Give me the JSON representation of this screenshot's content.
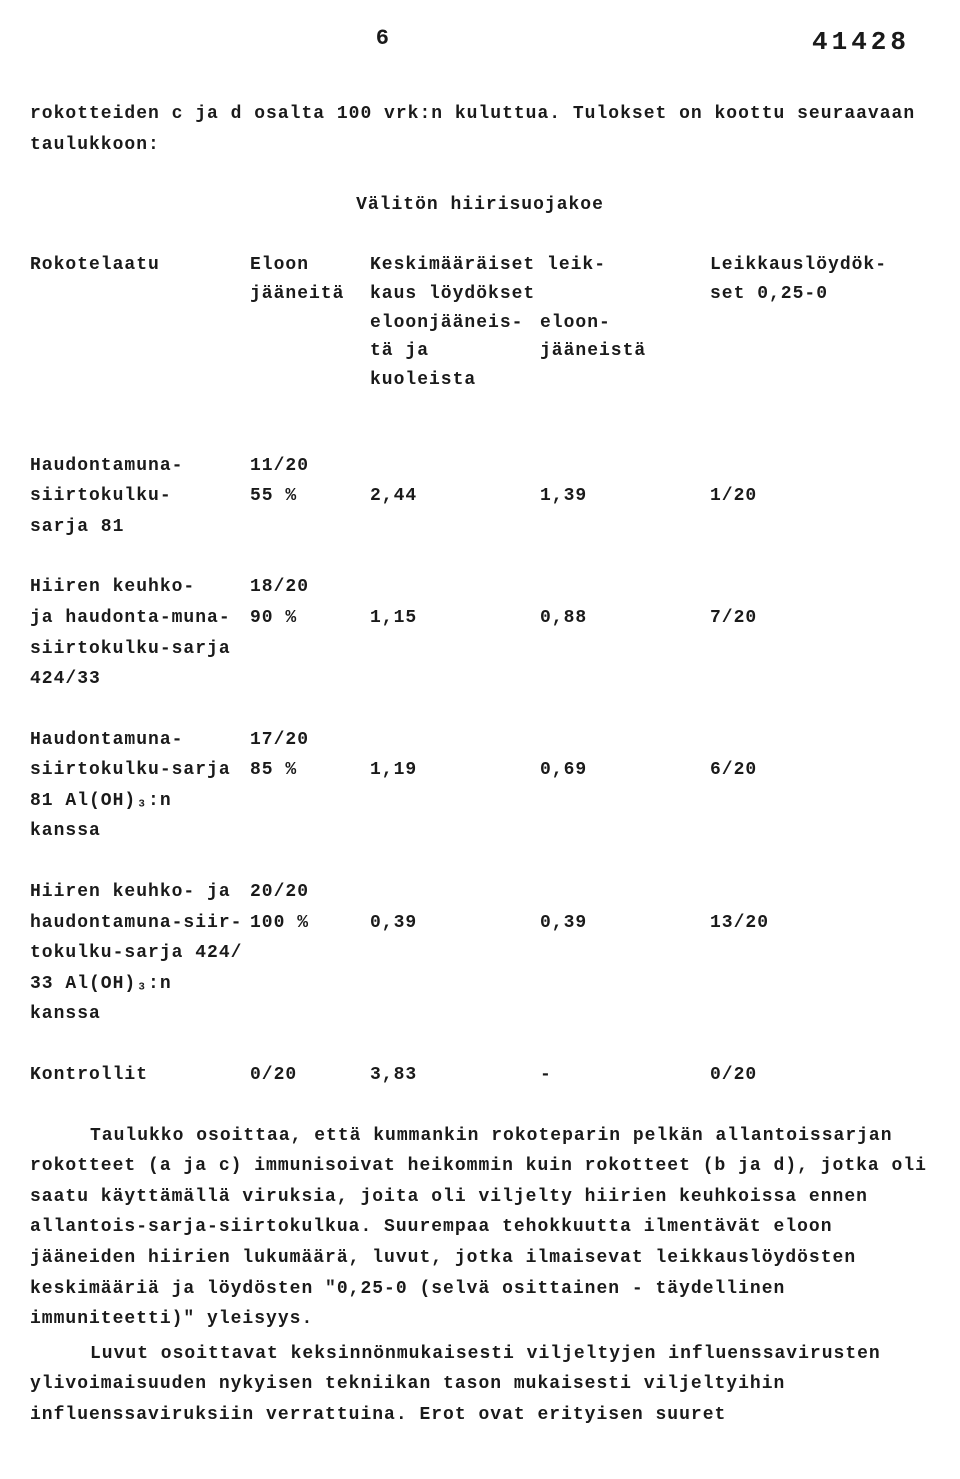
{
  "header": {
    "page_number": "6",
    "doc_number": "41428"
  },
  "intro": "rokotteiden c ja d osalta 100 vrk:n kuluttua.  Tulokset on koottu seuraavaan taulukkoon:",
  "section_title": "Välitön hiirisuojakoe",
  "table": {
    "headers": {
      "c1": "Rokotelaatu",
      "c2a": "Eloon",
      "c2b": "jääneitä",
      "c3a": "Keskimääräiset leik-",
      "c3b": "kaus löydökset",
      "c3c": "eloonjääneis-",
      "c3d": "tä ja kuoleista",
      "c4c": "eloon-",
      "c4d": "jääneistä",
      "c5a": "Leikkauslöydök-",
      "c5b": "set 0,25-0"
    },
    "rows": [
      {
        "label_lines": [
          "Haudontamuna-",
          "siirtokulku-",
          "sarja 81"
        ],
        "survivors_lines": [
          "11/20",
          "55 %"
        ],
        "avg_all": "2,44",
        "avg_surv": "1,39",
        "findings": "1/20"
      },
      {
        "label_lines": [
          "Hiiren keuhko-",
          "ja haudonta-muna-",
          "siirtokulku-sarja",
          "424/33"
        ],
        "survivors_lines": [
          "18/20",
          "90 %"
        ],
        "avg_all": "1,15",
        "avg_surv": "0,88",
        "findings": "7/20"
      },
      {
        "label_lines": [
          "Haudontamuna-",
          "siirtokulku-sarja",
          "81 Al(OH)₃:n kanssa"
        ],
        "survivors_lines": [
          "17/20",
          "85 %"
        ],
        "avg_all": "1,19",
        "avg_surv": "0,69",
        "findings": "6/20"
      },
      {
        "label_lines": [
          "Hiiren keuhko- ja",
          "haudontamuna-siir-",
          "tokulku-sarja 424/",
          "33 Al(OH)₃:n kanssa"
        ],
        "survivors_lines": [
          "20/20",
          "100 %"
        ],
        "avg_all": "0,39",
        "avg_surv": "0,39",
        "findings": "13/20"
      },
      {
        "label_lines": [
          "Kontrollit"
        ],
        "survivors_lines": [
          "0/20"
        ],
        "avg_all": "3,83",
        "avg_surv": "-",
        "findings": "0/20"
      }
    ]
  },
  "body_paragraphs": [
    "Taulukko osoittaa, että kummankin rokoteparin pelkän allantoissarjan rokotteet (a ja c) immunisoivat heikommin kuin rokotteet (b ja d), jotka oli saatu käyttämällä viruksia, joita oli viljelty hiirien keuhkoissa ennen allantois-sarja-siirtokulkua.  Suurempaa tehokkuutta ilmentävät eloon jääneiden hiirien lukumäärä, luvut, jotka ilmaisevat leikkauslöydösten keskimääriä ja löydösten \"0,25-0 (selvä osittainen - täydellinen immuniteetti)\" yleisyys.",
    "Luvut osoittavat keksinnönmukaisesti viljeltyjen influenssavirusten ylivoimaisuuden nykyisen tekniikan tason mukaisesti viljeltyihin influenssaviruksiin verrattuina.  Erot ovat erityisen suuret"
  ]
}
